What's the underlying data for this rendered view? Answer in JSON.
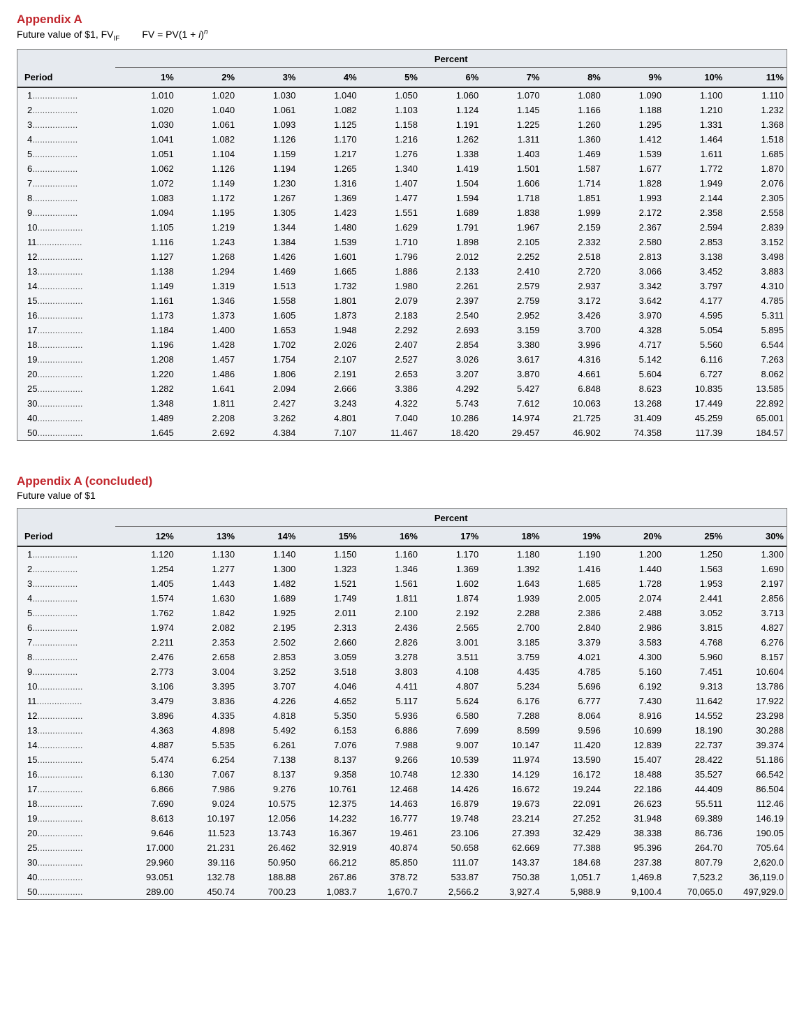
{
  "colors": {
    "title_red": "#c1272d",
    "table_bg": "#f2f4f7",
    "table_border": "#7a7a7a",
    "header_bg": "#e6eaef",
    "header_rule": "#2b2b2b",
    "text": "#000000",
    "page_bg": "#ffffff"
  },
  "fonts": {
    "title_size_pt": 13,
    "body_size_pt": 10,
    "table_size_pt": 9.5
  },
  "section1": {
    "title": "Appendix A",
    "subtitle_plain": "Future value of $1, FV",
    "subtitle_sub": "IF",
    "formula_lhs": "FV = PV(1 + ",
    "formula_var": "i",
    "formula_rhs_base": ")",
    "formula_exp": "n",
    "group_header": "Percent",
    "period_header": "Period",
    "percent_headers": [
      "1%",
      "2%",
      "3%",
      "4%",
      "5%",
      "6%",
      "7%",
      "8%",
      "9%",
      "10%",
      "11%"
    ],
    "rows": [
      {
        "p": "1",
        "v": [
          "1.010",
          "1.020",
          "1.030",
          "1.040",
          "1.050",
          "1.060",
          "1.070",
          "1.080",
          "1.090",
          "1.100",
          "1.110"
        ]
      },
      {
        "p": "2",
        "v": [
          "1.020",
          "1.040",
          "1.061",
          "1.082",
          "1.103",
          "1.124",
          "1.145",
          "1.166",
          "1.188",
          "1.210",
          "1.232"
        ]
      },
      {
        "p": "3",
        "v": [
          "1.030",
          "1.061",
          "1.093",
          "1.125",
          "1.158",
          "1.191",
          "1.225",
          "1.260",
          "1.295",
          "1.331",
          "1.368"
        ]
      },
      {
        "p": "4",
        "v": [
          "1.041",
          "1.082",
          "1.126",
          "1.170",
          "1.216",
          "1.262",
          "1.311",
          "1.360",
          "1.412",
          "1.464",
          "1.518"
        ]
      },
      {
        "p": "5",
        "v": [
          "1.051",
          "1.104",
          "1.159",
          "1.217",
          "1.276",
          "1.338",
          "1.403",
          "1.469",
          "1.539",
          "1.611",
          "1.685"
        ]
      },
      {
        "p": "6",
        "v": [
          "1.062",
          "1.126",
          "1.194",
          "1.265",
          "1.340",
          "1.419",
          "1.501",
          "1.587",
          "1.677",
          "1.772",
          "1.870"
        ]
      },
      {
        "p": "7",
        "v": [
          "1.072",
          "1.149",
          "1.230",
          "1.316",
          "1.407",
          "1.504",
          "1.606",
          "1.714",
          "1.828",
          "1.949",
          "2.076"
        ]
      },
      {
        "p": "8",
        "v": [
          "1.083",
          "1.172",
          "1.267",
          "1.369",
          "1.477",
          "1.594",
          "1.718",
          "1.851",
          "1.993",
          "2.144",
          "2.305"
        ]
      },
      {
        "p": "9",
        "v": [
          "1.094",
          "1.195",
          "1.305",
          "1.423",
          "1.551",
          "1.689",
          "1.838",
          "1.999",
          "2.172",
          "2.358",
          "2.558"
        ]
      },
      {
        "p": "10",
        "v": [
          "1.105",
          "1.219",
          "1.344",
          "1.480",
          "1.629",
          "1.791",
          "1.967",
          "2.159",
          "2.367",
          "2.594",
          "2.839"
        ]
      },
      {
        "p": "11",
        "v": [
          "1.116",
          "1.243",
          "1.384",
          "1.539",
          "1.710",
          "1.898",
          "2.105",
          "2.332",
          "2.580",
          "2.853",
          "3.152"
        ]
      },
      {
        "p": "12",
        "v": [
          "1.127",
          "1.268",
          "1.426",
          "1.601",
          "1.796",
          "2.012",
          "2.252",
          "2.518",
          "2.813",
          "3.138",
          "3.498"
        ]
      },
      {
        "p": "13",
        "v": [
          "1.138",
          "1.294",
          "1.469",
          "1.665",
          "1.886",
          "2.133",
          "2.410",
          "2.720",
          "3.066",
          "3.452",
          "3.883"
        ]
      },
      {
        "p": "14",
        "v": [
          "1.149",
          "1.319",
          "1.513",
          "1.732",
          "1.980",
          "2.261",
          "2.579",
          "2.937",
          "3.342",
          "3.797",
          "4.310"
        ]
      },
      {
        "p": "15",
        "v": [
          "1.161",
          "1.346",
          "1.558",
          "1.801",
          "2.079",
          "2.397",
          "2.759",
          "3.172",
          "3.642",
          "4.177",
          "4.785"
        ]
      },
      {
        "p": "16",
        "v": [
          "1.173",
          "1.373",
          "1.605",
          "1.873",
          "2.183",
          "2.540",
          "2.952",
          "3.426",
          "3.970",
          "4.595",
          "5.311"
        ]
      },
      {
        "p": "17",
        "v": [
          "1.184",
          "1.400",
          "1.653",
          "1.948",
          "2.292",
          "2.693",
          "3.159",
          "3.700",
          "4.328",
          "5.054",
          "5.895"
        ]
      },
      {
        "p": "18",
        "v": [
          "1.196",
          "1.428",
          "1.702",
          "2.026",
          "2.407",
          "2.854",
          "3.380",
          "3.996",
          "4.717",
          "5.560",
          "6.544"
        ]
      },
      {
        "p": "19",
        "v": [
          "1.208",
          "1.457",
          "1.754",
          "2.107",
          "2.527",
          "3.026",
          "3.617",
          "4.316",
          "5.142",
          "6.116",
          "7.263"
        ]
      },
      {
        "p": "20",
        "v": [
          "1.220",
          "1.486",
          "1.806",
          "2.191",
          "2.653",
          "3.207",
          "3.870",
          "4.661",
          "5.604",
          "6.727",
          "8.062"
        ]
      },
      {
        "p": "25",
        "v": [
          "1.282",
          "1.641",
          "2.094",
          "2.666",
          "3.386",
          "4.292",
          "5.427",
          "6.848",
          "8.623",
          "10.835",
          "13.585"
        ]
      },
      {
        "p": "30",
        "v": [
          "1.348",
          "1.811",
          "2.427",
          "3.243",
          "4.322",
          "5.743",
          "7.612",
          "10.063",
          "13.268",
          "17.449",
          "22.892"
        ]
      },
      {
        "p": "40",
        "v": [
          "1.489",
          "2.208",
          "3.262",
          "4.801",
          "7.040",
          "10.286",
          "14.974",
          "21.725",
          "31.409",
          "45.259",
          "65.001"
        ]
      },
      {
        "p": "50",
        "v": [
          "1.645",
          "2.692",
          "4.384",
          "7.107",
          "11.467",
          "18.420",
          "29.457",
          "46.902",
          "74.358",
          "117.39",
          "184.57"
        ]
      }
    ]
  },
  "section2": {
    "title": "Appendix A (concluded)",
    "subtitle": "Future value of $1",
    "group_header": "Percent",
    "period_header": "Period",
    "percent_headers": [
      "12%",
      "13%",
      "14%",
      "15%",
      "16%",
      "17%",
      "18%",
      "19%",
      "20%",
      "25%",
      "30%"
    ],
    "rows": [
      {
        "p": "1",
        "v": [
          "1.120",
          "1.130",
          "1.140",
          "1.150",
          "1.160",
          "1.170",
          "1.180",
          "1.190",
          "1.200",
          "1.250",
          "1.300"
        ]
      },
      {
        "p": "2",
        "v": [
          "1.254",
          "1.277",
          "1.300",
          "1.323",
          "1.346",
          "1.369",
          "1.392",
          "1.416",
          "1.440",
          "1.563",
          "1.690"
        ]
      },
      {
        "p": "3",
        "v": [
          "1.405",
          "1.443",
          "1.482",
          "1.521",
          "1.561",
          "1.602",
          "1.643",
          "1.685",
          "1.728",
          "1.953",
          "2.197"
        ]
      },
      {
        "p": "4",
        "v": [
          "1.574",
          "1.630",
          "1.689",
          "1.749",
          "1.811",
          "1.874",
          "1.939",
          "2.005",
          "2.074",
          "2.441",
          "2.856"
        ]
      },
      {
        "p": "5",
        "v": [
          "1.762",
          "1.842",
          "1.925",
          "2.011",
          "2.100",
          "2.192",
          "2.288",
          "2.386",
          "2.488",
          "3.052",
          "3.713"
        ]
      },
      {
        "p": "6",
        "v": [
          "1.974",
          "2.082",
          "2.195",
          "2.313",
          "2.436",
          "2.565",
          "2.700",
          "2.840",
          "2.986",
          "3.815",
          "4.827"
        ]
      },
      {
        "p": "7",
        "v": [
          "2.211",
          "2.353",
          "2.502",
          "2.660",
          "2.826",
          "3.001",
          "3.185",
          "3.379",
          "3.583",
          "4.768",
          "6.276"
        ]
      },
      {
        "p": "8",
        "v": [
          "2.476",
          "2.658",
          "2.853",
          "3.059",
          "3.278",
          "3.511",
          "3.759",
          "4.021",
          "4.300",
          "5.960",
          "8.157"
        ]
      },
      {
        "p": "9",
        "v": [
          "2.773",
          "3.004",
          "3.252",
          "3.518",
          "3.803",
          "4.108",
          "4.435",
          "4.785",
          "5.160",
          "7.451",
          "10.604"
        ]
      },
      {
        "p": "10",
        "v": [
          "3.106",
          "3.395",
          "3.707",
          "4.046",
          "4.411",
          "4.807",
          "5.234",
          "5.696",
          "6.192",
          "9.313",
          "13.786"
        ]
      },
      {
        "p": "11",
        "v": [
          "3.479",
          "3.836",
          "4.226",
          "4.652",
          "5.117",
          "5.624",
          "6.176",
          "6.777",
          "7.430",
          "11.642",
          "17.922"
        ]
      },
      {
        "p": "12",
        "v": [
          "3.896",
          "4.335",
          "4.818",
          "5.350",
          "5.936",
          "6.580",
          "7.288",
          "8.064",
          "8.916",
          "14.552",
          "23.298"
        ]
      },
      {
        "p": "13",
        "v": [
          "4.363",
          "4.898",
          "5.492",
          "6.153",
          "6.886",
          "7.699",
          "8.599",
          "9.596",
          "10.699",
          "18.190",
          "30.288"
        ]
      },
      {
        "p": "14",
        "v": [
          "4.887",
          "5.535",
          "6.261",
          "7.076",
          "7.988",
          "9.007",
          "10.147",
          "11.420",
          "12.839",
          "22.737",
          "39.374"
        ]
      },
      {
        "p": "15",
        "v": [
          "5.474",
          "6.254",
          "7.138",
          "8.137",
          "9.266",
          "10.539",
          "11.974",
          "13.590",
          "15.407",
          "28.422",
          "51.186"
        ]
      },
      {
        "p": "16",
        "v": [
          "6.130",
          "7.067",
          "8.137",
          "9.358",
          "10.748",
          "12.330",
          "14.129",
          "16.172",
          "18.488",
          "35.527",
          "66.542"
        ]
      },
      {
        "p": "17",
        "v": [
          "6.866",
          "7.986",
          "9.276",
          "10.761",
          "12.468",
          "14.426",
          "16.672",
          "19.244",
          "22.186",
          "44.409",
          "86.504"
        ]
      },
      {
        "p": "18",
        "v": [
          "7.690",
          "9.024",
          "10.575",
          "12.375",
          "14.463",
          "16.879",
          "19.673",
          "22.091",
          "26.623",
          "55.511",
          "112.46"
        ]
      },
      {
        "p": "19",
        "v": [
          "8.613",
          "10.197",
          "12.056",
          "14.232",
          "16.777",
          "19.748",
          "23.214",
          "27.252",
          "31.948",
          "69.389",
          "146.19"
        ]
      },
      {
        "p": "20",
        "v": [
          "9.646",
          "11.523",
          "13.743",
          "16.367",
          "19.461",
          "23.106",
          "27.393",
          "32.429",
          "38.338",
          "86.736",
          "190.05"
        ]
      },
      {
        "p": "25",
        "v": [
          "17.000",
          "21.231",
          "26.462",
          "32.919",
          "40.874",
          "50.658",
          "62.669",
          "77.388",
          "95.396",
          "264.70",
          "705.64"
        ]
      },
      {
        "p": "30",
        "v": [
          "29.960",
          "39.116",
          "50.950",
          "66.212",
          "85.850",
          "111.07",
          "143.37",
          "184.68",
          "237.38",
          "807.79",
          "2,620.0"
        ]
      },
      {
        "p": "40",
        "v": [
          "93.051",
          "132.78",
          "188.88",
          "267.86",
          "378.72",
          "533.87",
          "750.38",
          "1,051.7",
          "1,469.8",
          "7,523.2",
          "36,119.0"
        ]
      },
      {
        "p": "50",
        "v": [
          "289.00",
          "450.74",
          "700.23",
          "1,083.7",
          "1,670.7",
          "2,566.2",
          "3,927.4",
          "5,988.9",
          "9,100.4",
          "70,065.0",
          "497,929.0"
        ]
      }
    ]
  }
}
